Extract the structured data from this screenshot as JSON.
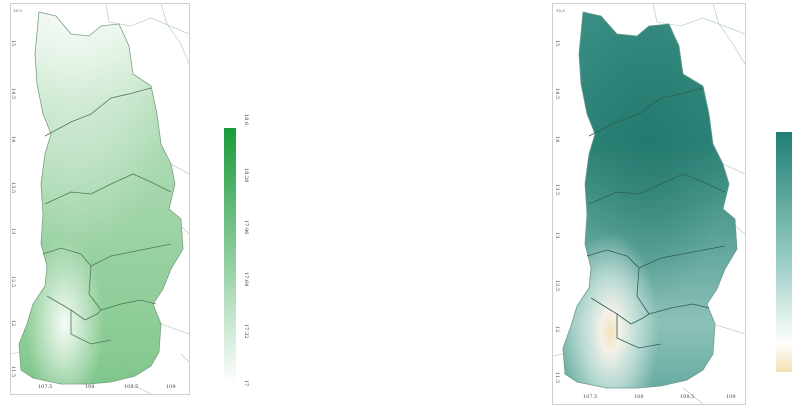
{
  "maps": [
    {
      "colormap": [
        "#ffffff",
        "#1a9a3a"
      ],
      "legend": {
        "labels": [
          "18.6",
          "18.28",
          "17.96",
          "17.64",
          "17.32",
          "17"
        ],
        "min": 17,
        "max": 18.6
      },
      "xticks": [
        "107.5",
        "108",
        "108.5",
        "109"
      ],
      "yticks": [
        "15",
        "14.5",
        "14",
        "13.5",
        "13",
        "12.5",
        "12",
        "11.5"
      ]
    },
    {
      "colormap": [
        "#f4dfb0",
        "#ffffff",
        "#1e7f74"
      ],
      "legend": {
        "labels": [
          "",
          "",
          "",
          "",
          "",
          ""
        ]
      },
      "xticks": [
        "107.5",
        "108",
        "108.5",
        "109"
      ],
      "yticks": [
        "15",
        "14.5",
        "14",
        "13.5",
        "13",
        "12.5",
        "12",
        "11.5"
      ]
    }
  ]
}
